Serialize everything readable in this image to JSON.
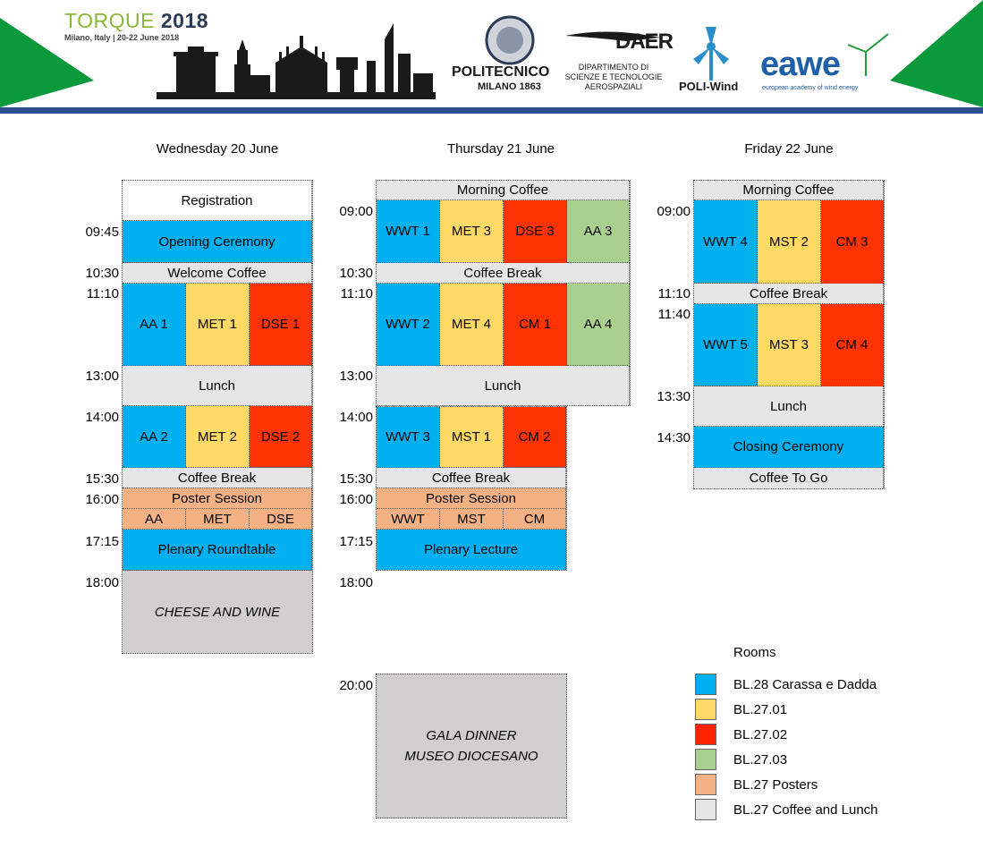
{
  "header": {
    "conference_title_a": "TORQUE",
    "conference_title_b": "2018",
    "conference_subtitle": "Milano, Italy  |  20-22 June 2018",
    "polimi_name": "POLITECNICO",
    "polimi_sub": "MILANO 1863",
    "daer_logo": "DAER",
    "daer_line1": "DIPARTIMENTO DI",
    "daer_line2": "SCIENZE E TECNOLOGIE",
    "daer_line3": "AEROSPAZIALI",
    "poliwind": "POLI-Wind",
    "eawe": "eawe",
    "eawe_sub": "european academy of wind energy",
    "colors": {
      "green": "#0a9a3c",
      "bar": "#2e4f8f",
      "torque": "#8ab83a",
      "eawe": "#1f5fa8"
    }
  },
  "days": {
    "wed": {
      "title": "Wednesday 20 June",
      "times": [
        "09:45",
        "10:30",
        "11:10",
        "13:00",
        "14:00",
        "15:30",
        "16:00",
        "17:15",
        "18:00"
      ],
      "registration": "Registration",
      "opening": "Opening Ceremony",
      "welcome_coffee": "Welcome Coffee",
      "s1": [
        "AA 1",
        "MET 1",
        "DSE 1"
      ],
      "lunch": "Lunch",
      "s2": [
        "AA 2",
        "MET 2",
        "DSE 2"
      ],
      "coffee_break": "Coffee Break",
      "poster_session": "Poster Session",
      "posters": [
        "AA",
        "MET",
        "DSE"
      ],
      "plenary": "Plenary Roundtable",
      "evening": "CHEESE AND WINE"
    },
    "thu": {
      "title": "Thursday 21 June",
      "times": [
        "09:00",
        "10:30",
        "11:10",
        "13:00",
        "14:00",
        "15:30",
        "16:00",
        "17:15",
        "18:00",
        "20:00"
      ],
      "morning_coffee": "Morning  Coffee",
      "s1": [
        "WWT 1",
        "MET 3",
        "DSE 3",
        "AA 3"
      ],
      "coffee_break_1": "Coffee Break",
      "s2": [
        "WWT 2",
        "MET 4",
        "CM 1",
        "AA 4"
      ],
      "lunch": "Lunch",
      "s3": [
        "WWT 3",
        "MST 1",
        "CM 2"
      ],
      "coffee_break_2": "Coffee Break",
      "poster_session": "Poster Session",
      "posters": [
        "WWT",
        "MST",
        "CM"
      ],
      "plenary": "Plenary Lecture",
      "gala_line1": "GALA DINNER",
      "gala_line2": "MUSEO DIOCESANO"
    },
    "fri": {
      "title": "Friday 22 June",
      "times": [
        "09:00",
        "11:10",
        "11:40",
        "13:30",
        "14:30"
      ],
      "morning_coffee": "Morning  Coffee",
      "s1": [
        "WWT 4",
        "MST 2",
        "CM 3"
      ],
      "coffee_break": "Coffee Break",
      "s2": [
        "WWT 5",
        "MST 3",
        "CM 4"
      ],
      "lunch": "Lunch",
      "closing": "Closing Ceremony",
      "coffee_to_go": "Coffee To Go"
    }
  },
  "legend": {
    "title": "Rooms",
    "items": [
      {
        "label": "BL.28 Carassa e Dadda",
        "color": "#00b0f0"
      },
      {
        "label": "BL.27.01",
        "color": "#ffd966"
      },
      {
        "label": "BL.27.02",
        "color": "#ff2200"
      },
      {
        "label": "BL.27.03",
        "color": "#a9d08e"
      },
      {
        "label": "BL.27 Posters",
        "color": "#f4b183"
      },
      {
        "label": "BL.27 Coffee and Lunch",
        "color": "#e7e6e6"
      }
    ]
  }
}
